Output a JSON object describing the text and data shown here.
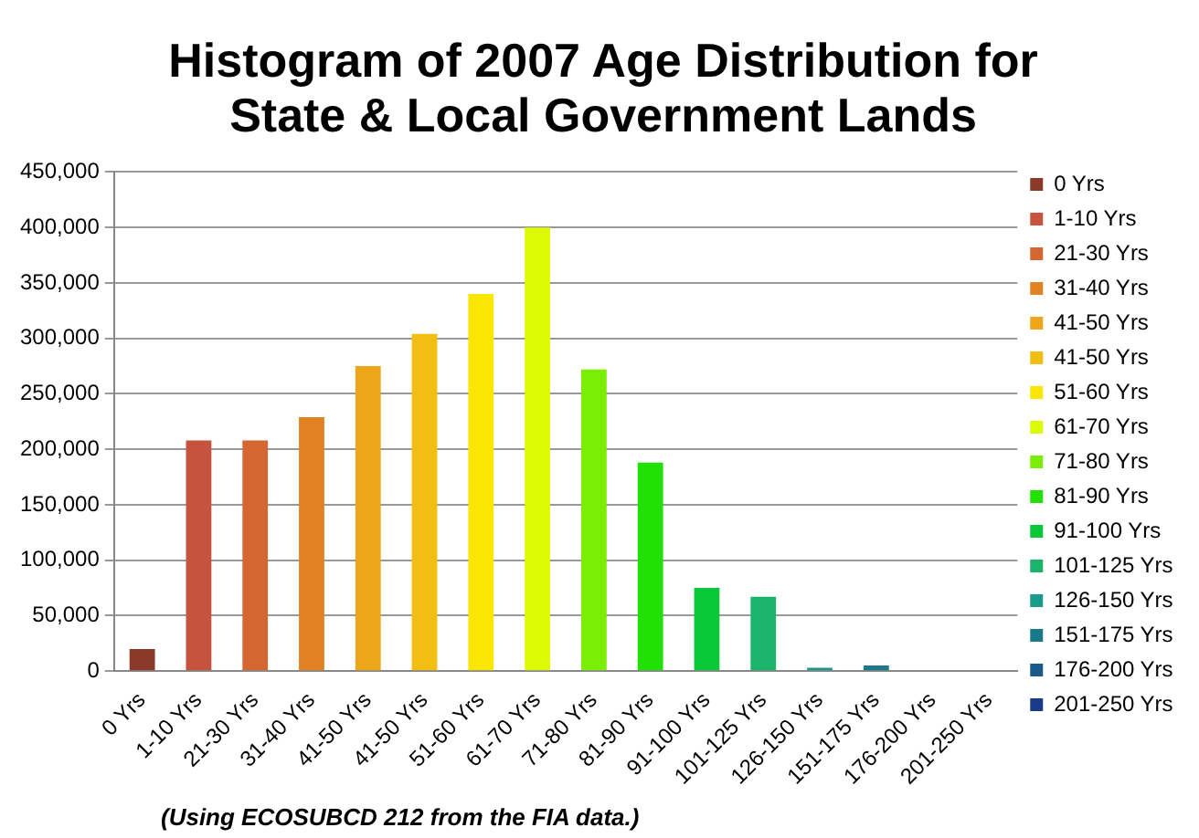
{
  "chart_data": {
    "type": "bar",
    "title": "Histogram of 2007 Age Distribution for State & Local Government Lands",
    "categories": [
      "0 Yrs",
      "1-10 Yrs",
      "21-30 Yrs",
      "31-40 Yrs",
      "41-50 Yrs",
      "41-50 Yrs",
      "51-60 Yrs",
      "61-70 Yrs",
      "71-80 Yrs",
      "81-90 Yrs",
      "91-100 Yrs",
      "101-125 Yrs",
      "126-150 Yrs",
      "151-175 Yrs",
      "176-200 Yrs",
      "201-250 Yrs"
    ],
    "series": [
      {
        "name": "0 Yrs",
        "color": "#8b3a2a",
        "values": [
          20000,
          null,
          null,
          null,
          null,
          null,
          null,
          null,
          null,
          null,
          null,
          null,
          null,
          null,
          null,
          null
        ]
      },
      {
        "name": "1-10 Yrs",
        "color": "#c5533d",
        "values": [
          null,
          208000,
          null,
          null,
          null,
          null,
          null,
          null,
          null,
          null,
          null,
          null,
          null,
          null,
          null,
          null
        ]
      },
      {
        "name": "21-30 Yrs",
        "color": "#d46632",
        "values": [
          null,
          null,
          208000,
          null,
          null,
          null,
          null,
          null,
          null,
          null,
          null,
          null,
          null,
          null,
          null,
          null
        ]
      },
      {
        "name": "31-40 Yrs",
        "color": "#e08224",
        "values": [
          null,
          null,
          null,
          229000,
          null,
          null,
          null,
          null,
          null,
          null,
          null,
          null,
          null,
          null,
          null,
          null
        ]
      },
      {
        "name": "41-50 Yrs",
        "color": "#eda619",
        "values": [
          null,
          null,
          null,
          null,
          275000,
          null,
          null,
          null,
          null,
          null,
          null,
          null,
          null,
          null,
          null,
          null
        ]
      },
      {
        "name": "41-50 Yrs",
        "color": "#f2be12",
        "values": [
          null,
          null,
          null,
          null,
          null,
          304000,
          null,
          null,
          null,
          null,
          null,
          null,
          null,
          null,
          null,
          null
        ]
      },
      {
        "name": "51-60 Yrs",
        "color": "#fae603",
        "values": [
          null,
          null,
          null,
          null,
          null,
          null,
          340000,
          null,
          null,
          null,
          null,
          null,
          null,
          null,
          null,
          null
        ]
      },
      {
        "name": "61-70 Yrs",
        "color": "#dcfa04",
        "values": [
          null,
          null,
          null,
          null,
          null,
          null,
          null,
          400000,
          null,
          null,
          null,
          null,
          null,
          null,
          null,
          null
        ]
      },
      {
        "name": "71-80 Yrs",
        "color": "#7aee04",
        "values": [
          null,
          null,
          null,
          null,
          null,
          null,
          null,
          null,
          272000,
          null,
          null,
          null,
          null,
          null,
          null,
          null
        ]
      },
      {
        "name": "81-90 Yrs",
        "color": "#20e004",
        "values": [
          null,
          null,
          null,
          null,
          null,
          null,
          null,
          null,
          null,
          188000,
          null,
          null,
          null,
          null,
          null,
          null
        ]
      },
      {
        "name": "91-100 Yrs",
        "color": "#08c838",
        "values": [
          null,
          null,
          null,
          null,
          null,
          null,
          null,
          null,
          null,
          null,
          75000,
          null,
          null,
          null,
          null,
          null
        ]
      },
      {
        "name": "101-125 Yrs",
        "color": "#1ab46a",
        "values": [
          null,
          null,
          null,
          null,
          null,
          null,
          null,
          null,
          null,
          null,
          null,
          67000,
          null,
          null,
          null,
          null
        ]
      },
      {
        "name": "126-150 Yrs",
        "color": "#1a9a8a",
        "values": [
          null,
          null,
          null,
          null,
          null,
          null,
          null,
          null,
          null,
          null,
          null,
          null,
          3000,
          null,
          null,
          null
        ]
      },
      {
        "name": "151-175 Yrs",
        "color": "#1a7a8a",
        "values": [
          null,
          null,
          null,
          null,
          null,
          null,
          null,
          null,
          null,
          null,
          null,
          null,
          null,
          5000,
          null,
          null
        ]
      },
      {
        "name": "176-200 Yrs",
        "color": "#1a5a8a",
        "values": [
          null,
          null,
          null,
          null,
          null,
          null,
          null,
          null,
          null,
          null,
          null,
          null,
          null,
          null,
          0,
          null
        ]
      },
      {
        "name": "201-250 Yrs",
        "color": "#1a3a8a",
        "values": [
          null,
          null,
          null,
          null,
          null,
          null,
          null,
          null,
          null,
          null,
          null,
          null,
          null,
          null,
          null,
          0
        ]
      }
    ],
    "ylim": [
      0,
      450000
    ],
    "yticks": [
      {
        "value": 0,
        "label": "0"
      },
      {
        "value": 50000,
        "label": "50,000"
      },
      {
        "value": 100000,
        "label": "100,000"
      },
      {
        "value": 150000,
        "label": "150,000"
      },
      {
        "value": 200000,
        "label": "200,000"
      },
      {
        "value": 250000,
        "label": "250,000"
      },
      {
        "value": 300000,
        "label": "300,000"
      },
      {
        "value": 350000,
        "label": "350,000"
      },
      {
        "value": 400000,
        "label": "400,000"
      },
      {
        "value": 450000,
        "label": "450,000"
      }
    ],
    "grid": "y",
    "legend": "right",
    "annotations": [
      "(Using ECOSUBCD 212 from the FIA data.)"
    ]
  }
}
